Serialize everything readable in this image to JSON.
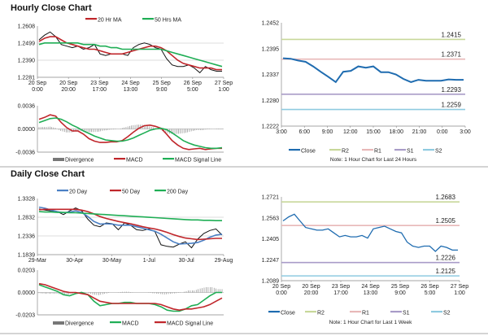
{
  "sections": {
    "hourly_title": "Hourly Close Chart",
    "daily_title": "Daily Close Chart"
  },
  "colors": {
    "red": "#c0262b",
    "green": "#1fae55",
    "blue": "#4a7fc4",
    "close": "#1f6cb0",
    "r2": "#c8d89a",
    "r1": "#e8b8b8",
    "s1": "#a99cc8",
    "s2": "#8fcbe0",
    "bars": "#777777"
  },
  "chart_data": [
    {
      "id": "hourly_price",
      "type": "line",
      "ylim": [
        1.2281,
        1.2608
      ],
      "yticks": [
        "1.2608",
        "1.2499",
        "1.2390",
        "1.2281"
      ],
      "xticks": [
        "20 Sep\n0:00",
        "20 Sep\n20:00",
        "23 Sep\n17:00",
        "24 Sep\n13:00",
        "25 Sep\n9:00",
        "26 Sep\n5:00",
        "27 Sep\n1:00"
      ],
      "legend": [
        "20 Hr MA",
        "50 Hrs MA"
      ],
      "series": [
        {
          "name": "Close",
          "values": [
            1.252,
            1.255,
            1.257,
            1.254,
            1.249,
            1.248,
            1.247,
            1.248,
            1.246,
            1.247,
            1.249,
            1.243,
            1.242,
            1.243,
            1.243,
            1.243,
            1.242,
            1.247,
            1.249,
            1.25,
            1.249,
            1.247,
            1.246,
            1.24,
            1.236,
            1.235,
            1.235,
            1.236,
            1.234,
            1.231,
            1.235,
            1.233,
            1.232,
            1.232
          ]
        },
        {
          "name": "20 Hr MA",
          "values": [
            1.251,
            1.253,
            1.254,
            1.254,
            1.252,
            1.25,
            1.249,
            1.248,
            1.247,
            1.246,
            1.246,
            1.245,
            1.244,
            1.243,
            1.243,
            1.243,
            1.244,
            1.245,
            1.246,
            1.247,
            1.248,
            1.248,
            1.247,
            1.245,
            1.242,
            1.239,
            1.237,
            1.236,
            1.235,
            1.234,
            1.234,
            1.234,
            1.233,
            1.233
          ]
        },
        {
          "name": "50 Hrs MA",
          "values": [
            1.249,
            1.25,
            1.25,
            1.25,
            1.25,
            1.25,
            1.25,
            1.25,
            1.249,
            1.249,
            1.249,
            1.248,
            1.248,
            1.247,
            1.247,
            1.246,
            1.246,
            1.246,
            1.246,
            1.246,
            1.246,
            1.246,
            1.246,
            1.245,
            1.244,
            1.243,
            1.242,
            1.241,
            1.24,
            1.239,
            1.238,
            1.237,
            1.236,
            1.235
          ]
        }
      ]
    },
    {
      "id": "hourly_macd",
      "type": "line",
      "ylim": [
        -0.0036,
        0.0036
      ],
      "yticks": [
        "0.0036",
        "0.0000",
        "-0.0036"
      ],
      "legend": [
        "Divergence",
        "MACD",
        "MACD Signal Line"
      ],
      "series": [
        {
          "name": "MACD",
          "values": [
            0.0015,
            0.0018,
            0.0022,
            0.002,
            0.001,
            0.0002,
            -0.0003,
            -0.0003,
            -0.0008,
            -0.0015,
            -0.0019,
            -0.0021,
            -0.0021,
            -0.002,
            -0.002,
            -0.0018,
            -0.0012,
            -0.0005,
            0.0001,
            0.0005,
            0.0006,
            0.0004,
            0.0001,
            -0.0008,
            -0.0018,
            -0.0025,
            -0.003,
            -0.0032,
            -0.0031,
            -0.003,
            -0.0032,
            -0.0031,
            -0.003,
            -0.003
          ]
        },
        {
          "name": "MACD Signal Line",
          "values": [
            0.001,
            0.0013,
            0.0016,
            0.0017,
            0.0015,
            0.0011,
            0.0006,
            0.0002,
            -0.0003,
            -0.0007,
            -0.0011,
            -0.0014,
            -0.0017,
            -0.0018,
            -0.0019,
            -0.0019,
            -0.0017,
            -0.0014,
            -0.001,
            -0.0006,
            -0.0002,
            0.0,
            0.0001,
            -0.0001,
            -0.0006,
            -0.0012,
            -0.0018,
            -0.0022,
            -0.0025,
            -0.0027,
            -0.0029,
            -0.003,
            -0.003,
            -0.0029
          ]
        }
      ]
    },
    {
      "id": "hourly_24h",
      "type": "line",
      "ylim": [
        1.2222,
        1.2452
      ],
      "yticks": [
        "1.2452",
        "1.2395",
        "1.2337",
        "1.2280",
        "1.2222"
      ],
      "xticks": [
        "3:00",
        "6:00",
        "9:00",
        "12:00",
        "15:00",
        "18:00",
        "21:00",
        "0:00",
        "3:00"
      ],
      "legend": [
        "Close",
        "R2",
        "R1",
        "S1",
        "S2"
      ],
      "note": "Note: 1 Hour Chart for Last 24 Hours",
      "levels": {
        "R2": 1.2415,
        "R1": 1.2371,
        "S1": 1.2293,
        "S2": 1.2259
      },
      "series": [
        {
          "name": "Close",
          "values": [
            1.2373,
            1.2372,
            1.2368,
            1.2365,
            1.2355,
            1.2343,
            1.2332,
            1.232,
            1.2343,
            1.2345,
            1.2355,
            1.2352,
            1.2355,
            1.2342,
            1.2342,
            1.2337,
            1.2327,
            1.232,
            1.2325,
            1.2323,
            1.2323,
            1.2323,
            1.2326,
            1.2325,
            1.2325
          ]
        }
      ]
    },
    {
      "id": "daily_price",
      "type": "line",
      "ylim": [
        1.1839,
        1.3328
      ],
      "yticks": [
        "1.3328",
        "1.2832",
        "1.2336",
        "1.1839"
      ],
      "xticks": [
        "29-Mar",
        "30-Apr",
        "30-May",
        "1-Jul",
        "30-Jul",
        "29-Aug"
      ],
      "legend": [
        "20 Day",
        "50 Day",
        "200 Day"
      ],
      "series": [
        {
          "name": "Close",
          "values": [
            1.305,
            1.302,
            1.3,
            1.298,
            1.29,
            1.3,
            1.308,
            1.3,
            1.278,
            1.262,
            1.258,
            1.268,
            1.266,
            1.25,
            1.268,
            1.262,
            1.25,
            1.248,
            1.252,
            1.245,
            1.21,
            1.206,
            1.204,
            1.212,
            1.218,
            1.202,
            1.225,
            1.24,
            1.248,
            1.252,
            1.236
          ]
        },
        {
          "name": "20 Day",
          "values": [
            1.31,
            1.307,
            1.302,
            1.298,
            1.295,
            1.297,
            1.3,
            1.296,
            1.285,
            1.272,
            1.265,
            1.266,
            1.265,
            1.262,
            1.262,
            1.262,
            1.258,
            1.254,
            1.25,
            1.246,
            1.238,
            1.228,
            1.218,
            1.212,
            1.213,
            1.214,
            1.216,
            1.222,
            1.23,
            1.236,
            1.238
          ]
        },
        {
          "name": "50 Day",
          "values": [
            1.303,
            1.304,
            1.304,
            1.304,
            1.304,
            1.304,
            1.304,
            1.302,
            1.298,
            1.292,
            1.285,
            1.28,
            1.276,
            1.272,
            1.269,
            1.266,
            1.262,
            1.258,
            1.255,
            1.252,
            1.248,
            1.243,
            1.237,
            1.232,
            1.228,
            1.226,
            1.224,
            1.225,
            1.226,
            1.227,
            1.227
          ]
        },
        {
          "name": "200 Day",
          "values": [
            1.298,
            1.297,
            1.297,
            1.296,
            1.296,
            1.295,
            1.295,
            1.294,
            1.293,
            1.292,
            1.291,
            1.29,
            1.289,
            1.288,
            1.287,
            1.286,
            1.285,
            1.284,
            1.283,
            1.282,
            1.281,
            1.28,
            1.279,
            1.278,
            1.277,
            1.276,
            1.276,
            1.275,
            1.275,
            1.274,
            1.274
          ]
        }
      ]
    },
    {
      "id": "daily_macd",
      "type": "line",
      "ylim": [
        -0.0203,
        0.0203
      ],
      "yticks": [
        "0.0203",
        "0.0000",
        "-0.0203"
      ],
      "legend": [
        "Divergence",
        "MACD",
        "MACD Signal Line"
      ],
      "series": [
        {
          "name": "MACD",
          "values": [
            0.007,
            0.005,
            0.003,
            0.001,
            -0.002,
            -0.003,
            -0.001,
            0.0,
            -0.002,
            -0.008,
            -0.012,
            -0.011,
            -0.01,
            -0.01,
            -0.009,
            -0.009,
            -0.01,
            -0.01,
            -0.01,
            -0.011,
            -0.013,
            -0.016,
            -0.017,
            -0.017,
            -0.015,
            -0.012,
            -0.011,
            -0.007,
            -0.003,
            0.0,
            0.0
          ]
        },
        {
          "name": "MACD Signal Line",
          "values": [
            0.008,
            0.007,
            0.005,
            0.003,
            0.001,
            0.0,
            0.0,
            -0.001,
            -0.002,
            -0.005,
            -0.008,
            -0.009,
            -0.01,
            -0.01,
            -0.01,
            -0.01,
            -0.01,
            -0.01,
            -0.01,
            -0.01,
            -0.011,
            -0.013,
            -0.015,
            -0.016,
            -0.015,
            -0.015,
            -0.014,
            -0.013,
            -0.011,
            -0.008,
            -0.005
          ]
        }
      ]
    },
    {
      "id": "weekly_hourly",
      "type": "line",
      "ylim": [
        1.2089,
        1.2721
      ],
      "yticks": [
        "1.2721",
        "1.2563",
        "1.2405",
        "1.2247",
        "1.2089"
      ],
      "xticks": [
        "20 Sep\n0:00",
        "20 Sep\n20:00",
        "23 Sep\n17:00",
        "24 Sep\n13:00",
        "25 Sep\n9:00",
        "26 Sep\n5:00",
        "27 Sep\n1:00"
      ],
      "legend": [
        "Close",
        "R2",
        "R1",
        "S1",
        "S2"
      ],
      "note": "Note: 1 Hour Chart for Last 1 Week",
      "levels": {
        "R2": 1.2683,
        "R1": 1.2505,
        "S1": 1.2226,
        "S2": 1.2125
      },
      "series": [
        {
          "name": "Close",
          "values": [
            1.254,
            1.257,
            1.259,
            1.254,
            1.249,
            1.248,
            1.247,
            1.247,
            1.248,
            1.245,
            1.242,
            1.243,
            1.242,
            1.242,
            1.243,
            1.241,
            1.248,
            1.249,
            1.25,
            1.248,
            1.246,
            1.245,
            1.238,
            1.235,
            1.234,
            1.235,
            1.235,
            1.231,
            1.235,
            1.234,
            1.232,
            1.232
          ]
        }
      ]
    }
  ]
}
